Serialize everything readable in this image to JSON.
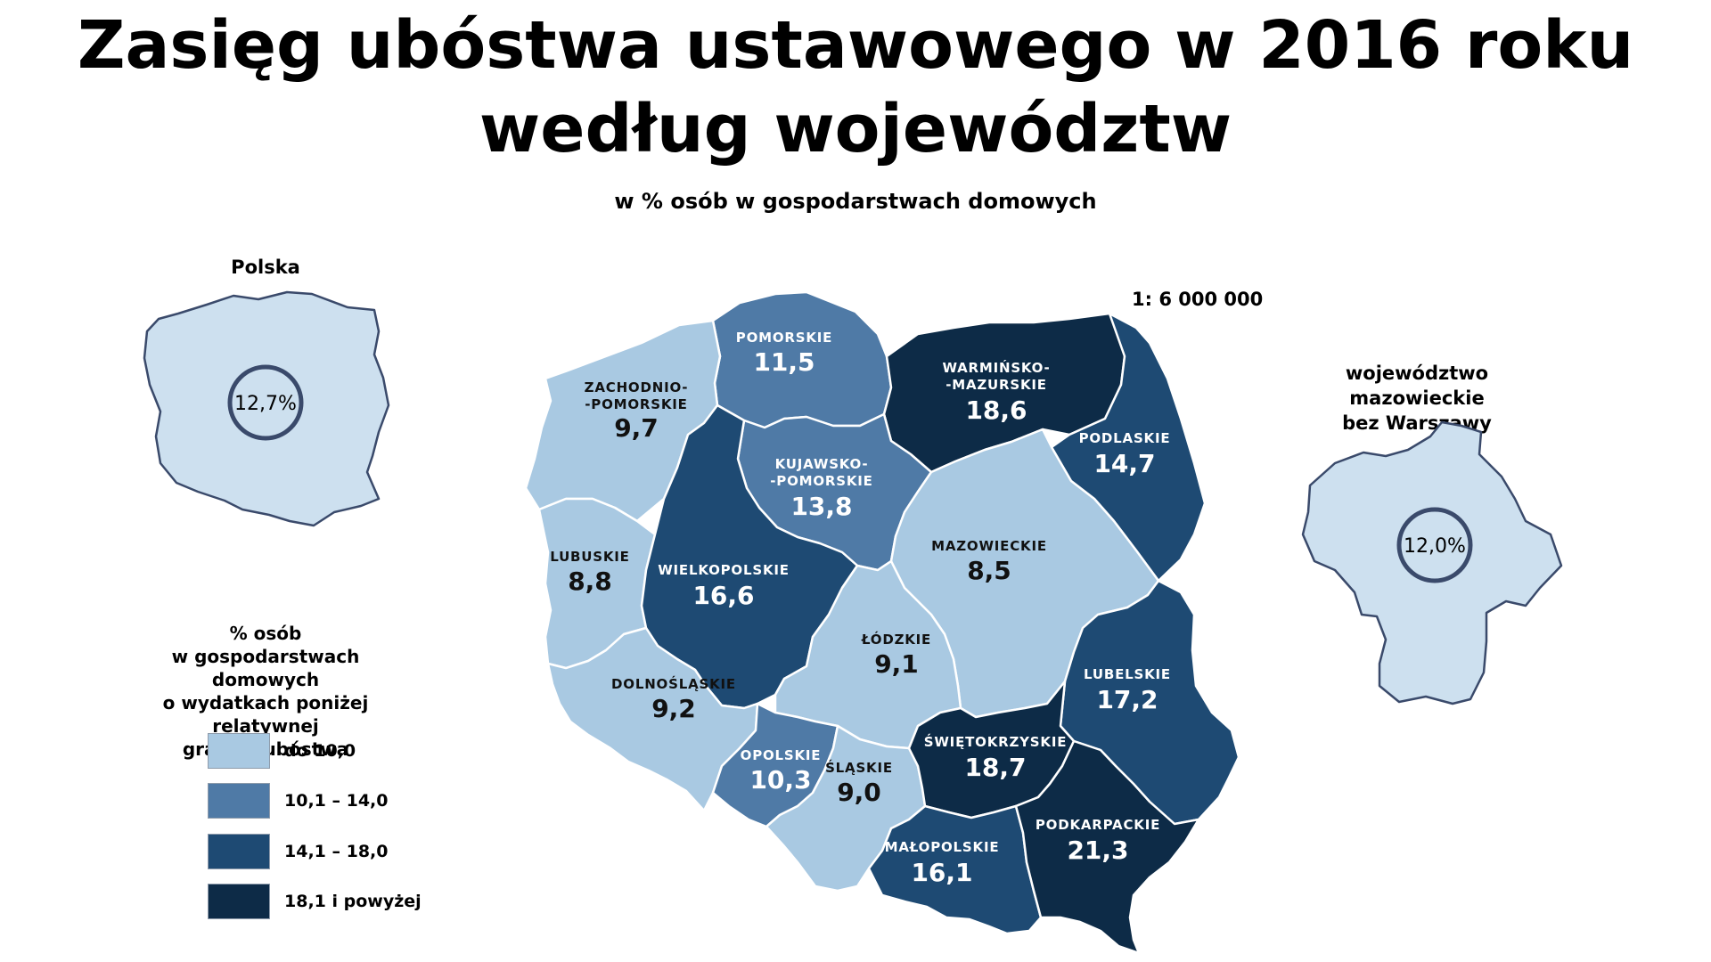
{
  "title_line1": "Zasięg ubóstwa ustawowego w 2016 roku",
  "title_line2": "według województw",
  "subtitle": "w % osób w gospodarstwach domowych",
  "scale": "1: 6 000 000",
  "inset_poland": {
    "label": "Polska",
    "value": "12,7%"
  },
  "inset_mazowieckie": {
    "label_line1": "województwo mazowieckie",
    "label_line2": "bez Warszawy",
    "value": "12,0%"
  },
  "legend": {
    "title_lines": [
      "% osób",
      "w gospodarstwach domowych",
      "o wydatkach poniżej relatywnej",
      "granicy ubóstwa"
    ],
    "items": [
      {
        "label": "do 10,0",
        "color": "#a9c9e2"
      },
      {
        "label": "10,1 – 14,0",
        "color": "#4f7aa6"
      },
      {
        "label": "14,1 – 18,0",
        "color": "#1e4a73"
      },
      {
        "label": "18,1 i powyżej",
        "color": "#0d2b47"
      }
    ]
  },
  "regions": [
    {
      "name_lines": [
        "POMORSKIE"
      ],
      "value": "11,5",
      "color": "#4f7aa6"
    },
    {
      "name_lines": [
        "ZACHODNIO-",
        "-POMORSKIE"
      ],
      "value": "9,7",
      "color": "#a9c9e2"
    },
    {
      "name_lines": [
        "WARMIŃSKO-",
        "-MAZURSKIE"
      ],
      "value": "18,6",
      "color": "#0d2b47"
    },
    {
      "name_lines": [
        "PODLASKIE"
      ],
      "value": "14,7",
      "color": "#1e4a73"
    },
    {
      "name_lines": [
        "KUJAWSKO-",
        "-POMORSKIE"
      ],
      "value": "13,8",
      "color": "#4f7aa6"
    },
    {
      "name_lines": [
        "LUBUSKIE"
      ],
      "value": "8,8",
      "color": "#a9c9e2"
    },
    {
      "name_lines": [
        "WIELKOPOLSKIE"
      ],
      "value": "16,6",
      "color": "#1e4a73"
    },
    {
      "name_lines": [
        "MAZOWIECKIE"
      ],
      "value": "8,5",
      "color": "#a9c9e2"
    },
    {
      "name_lines": [
        "ŁÓDZKIE"
      ],
      "value": "9,1",
      "color": "#a9c9e2"
    },
    {
      "name_lines": [
        "LUBELSKIE"
      ],
      "value": "17,2",
      "color": "#1e4a73"
    },
    {
      "name_lines": [
        "DOLNOŚLĄSKIE"
      ],
      "value": "9,2",
      "color": "#a9c9e2"
    },
    {
      "name_lines": [
        "OPOLSKIE"
      ],
      "value": "10,3",
      "color": "#4f7aa6"
    },
    {
      "name_lines": [
        "ŚLĄSKIE"
      ],
      "value": "9,0",
      "color": "#a9c9e2"
    },
    {
      "name_lines": [
        "ŚWIĘTOKRZYSKIE"
      ],
      "value": "18,7",
      "color": "#0d2b47"
    },
    {
      "name_lines": [
        "MAŁOPOLSKIE"
      ],
      "value": "16,1",
      "color": "#1e4a73"
    },
    {
      "name_lines": [
        "PODKARPACKIE"
      ],
      "value": "21,3",
      "color": "#0d2b47"
    }
  ]
}
